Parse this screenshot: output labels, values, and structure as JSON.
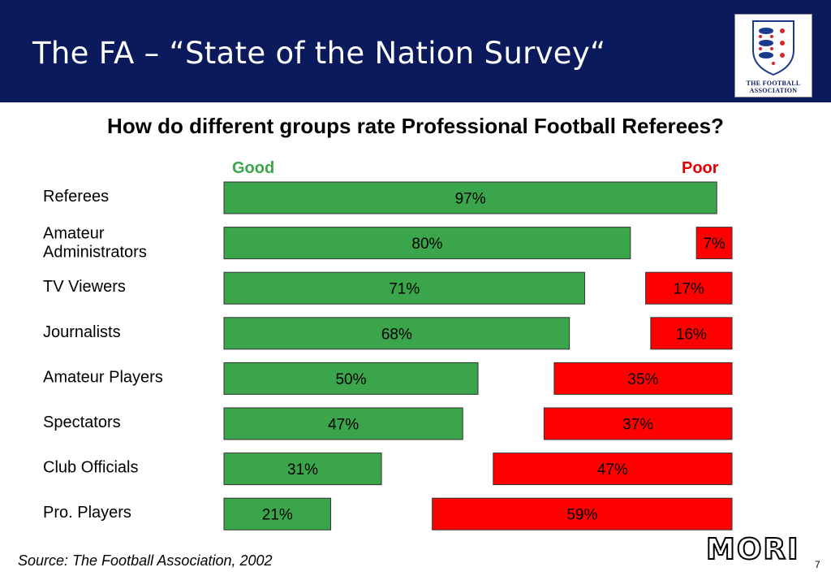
{
  "header": {
    "title": "The FA – “State of the Nation Survey“",
    "logo_text_line1": "THE FOOTBALL",
    "logo_text_line2": "ASSOCIATION"
  },
  "colors": {
    "header_bg": "#0a1a5c",
    "good": "#3aa54a",
    "poor": "#ff0000",
    "good_label": "#3aa54a",
    "poor_label": "#e00000"
  },
  "chart_data": {
    "type": "bar",
    "title": "How do different groups rate Professional Football Referees?",
    "legend": {
      "good": "Good",
      "poor": "Poor"
    },
    "categories": [
      "Referees",
      "Amateur Administrators",
      "TV Viewers",
      "Journalists",
      "Amateur Players",
      "Spectators",
      "Club Officials",
      "Pro. Players"
    ],
    "series": [
      {
        "name": "Good",
        "values": [
          97,
          80,
          71,
          68,
          50,
          47,
          31,
          21
        ],
        "labels": [
          "97%",
          "80%",
          "71%",
          "68%",
          "50%",
          "47%",
          "31%",
          "21%"
        ]
      },
      {
        "name": "Poor",
        "values": [
          null,
          7,
          17,
          16,
          35,
          37,
          47,
          59
        ],
        "labels": [
          "",
          "7%",
          "17%",
          "16%",
          "35%",
          "37%",
          "47%",
          "59%"
        ]
      }
    ],
    "xlim": [
      0,
      100
    ]
  },
  "footer": {
    "source": "Source:  The Football Association, 2002",
    "brand": "MORI",
    "page_number": "7"
  }
}
